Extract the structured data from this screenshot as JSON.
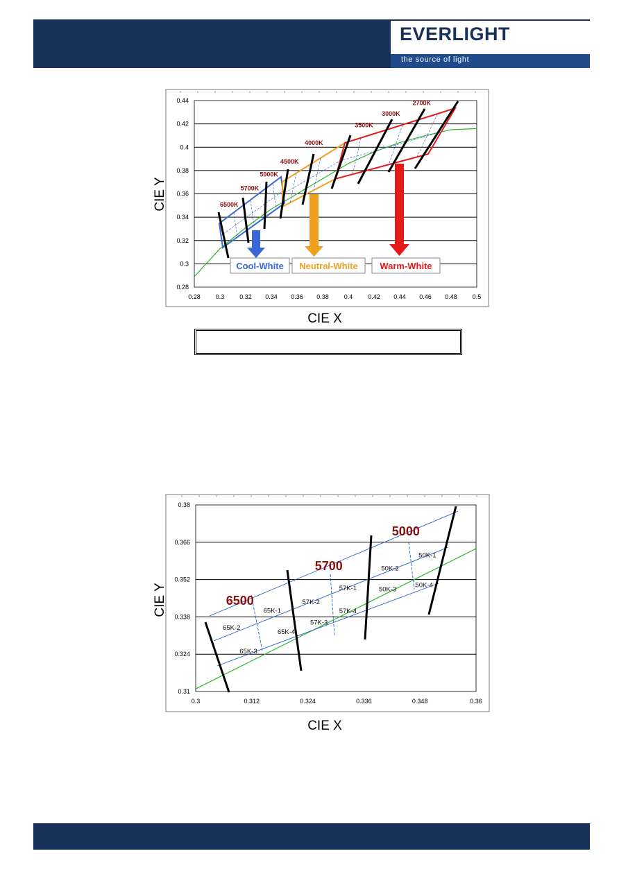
{
  "header": {
    "brand": "EVERLIGHT",
    "tagline": "the source of light"
  },
  "chart_data": [
    {
      "type": "line",
      "xlabel": "CIE X",
      "ylabel": "CIE Y",
      "xlim": [
        0.28,
        0.5
      ],
      "ylim": [
        0.28,
        0.44
      ],
      "x_ticks": [
        "0.28",
        "0.3",
        "0.32",
        "0.34",
        "0.36",
        "0.38",
        "0.4",
        "0.42",
        "0.44",
        "0.46",
        "0.48",
        "0.5"
      ],
      "y_ticks": [
        "0.28",
        "0.3",
        "0.32",
        "0.34",
        "0.36",
        "0.38",
        "0.4",
        "0.42",
        "0.44"
      ],
      "grid": "horizontal",
      "series": [
        {
          "color": "#2bb52b",
          "x": [
            0.28,
            0.3,
            0.32,
            0.34,
            0.36,
            0.38,
            0.4,
            0.42,
            0.44,
            0.46,
            0.48,
            0.5
          ],
          "y": [
            0.289,
            0.313,
            0.331,
            0.347,
            0.36,
            0.373,
            0.386,
            0.396,
            0.404,
            0.41,
            0.415,
            0.416
          ]
        }
      ],
      "cct_labels": [
        {
          "text": "6500K",
          "x": 0.3,
          "y": 0.349
        },
        {
          "text": "5700K",
          "x": 0.316,
          "y": 0.363
        },
        {
          "text": "5000K",
          "x": 0.331,
          "y": 0.375
        },
        {
          "text": "4500K",
          "x": 0.347,
          "y": 0.386
        },
        {
          "text": "4000K",
          "x": 0.366,
          "y": 0.402
        },
        {
          "text": "3500K",
          "x": 0.405,
          "y": 0.417
        },
        {
          "text": "3000K",
          "x": 0.426,
          "y": 0.427
        },
        {
          "text": "2700K",
          "x": 0.45,
          "y": 0.436
        }
      ],
      "regions": [
        {
          "label": "Cool-White",
          "color": "#3a67d6"
        },
        {
          "label": "Neutral-White",
          "color": "#f0a020"
        },
        {
          "label": "Warm-White",
          "color": "#e41a1a"
        }
      ]
    },
    {
      "type": "line",
      "xlabel": "CIE X",
      "ylabel": "CIE Y",
      "xlim": [
        0.3,
        0.36
      ],
      "ylim": [
        0.31,
        0.38
      ],
      "x_ticks": [
        "0.3",
        "0.312",
        "0.324",
        "0.336",
        "0.348",
        "0.36"
      ],
      "y_ticks": [
        "0.31",
        "0.324",
        "0.338",
        "0.352",
        "0.366",
        "0.38"
      ],
      "grid": "horizontal",
      "series": [
        {
          "color": "#2bb52b",
          "x": [
            0.3,
            0.36
          ],
          "y": [
            0.311,
            0.3636
          ]
        }
      ],
      "cct_labels": [
        {
          "text": "6500",
          "x": 0.3065,
          "y": 0.3425
        },
        {
          "text": "5700",
          "x": 0.3255,
          "y": 0.3555
        },
        {
          "text": "5000",
          "x": 0.342,
          "y": 0.3685
        }
      ],
      "bin_labels": [
        {
          "text": "65K-1",
          "x": 0.3145,
          "y": 0.3396
        },
        {
          "text": "65K-2",
          "x": 0.3058,
          "y": 0.3332
        },
        {
          "text": "65K-3",
          "x": 0.3094,
          "y": 0.3243
        },
        {
          "text": "65K-4",
          "x": 0.3175,
          "y": 0.3316
        },
        {
          "text": "57K-2",
          "x": 0.3228,
          "y": 0.3428
        },
        {
          "text": "57K-1",
          "x": 0.3307,
          "y": 0.348
        },
        {
          "text": "57K-3",
          "x": 0.3245,
          "y": 0.3351
        },
        {
          "text": "57K-4",
          "x": 0.3307,
          "y": 0.3394
        },
        {
          "text": "50K-2",
          "x": 0.3397,
          "y": 0.3554
        },
        {
          "text": "50K-1",
          "x": 0.3477,
          "y": 0.3603
        },
        {
          "text": "50K-3",
          "x": 0.3392,
          "y": 0.3476
        },
        {
          "text": "50K-4",
          "x": 0.347,
          "y": 0.3492
        }
      ]
    }
  ]
}
